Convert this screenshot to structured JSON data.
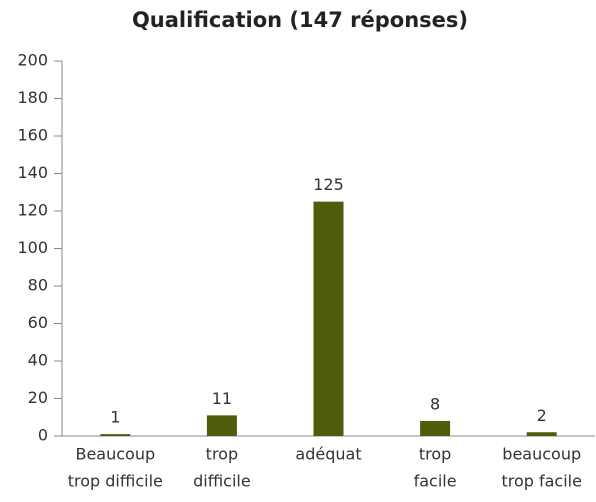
{
  "chart_data": {
    "type": "bar",
    "title": "Qualification (147 réponses)",
    "categories": [
      [
        "Beaucoup",
        "trop difficile"
      ],
      [
        "trop",
        "difficile"
      ],
      [
        "adéquat"
      ],
      [
        "trop",
        "facile"
      ],
      [
        "beaucoup",
        "trop facile"
      ]
    ],
    "values": [
      1,
      11,
      125,
      8,
      2
    ],
    "color": "#4e5c0b",
    "ylim": [
      0,
      200
    ],
    "yticks": [
      0,
      20,
      40,
      60,
      80,
      100,
      120,
      140,
      160,
      180,
      200
    ],
    "grid": false
  }
}
